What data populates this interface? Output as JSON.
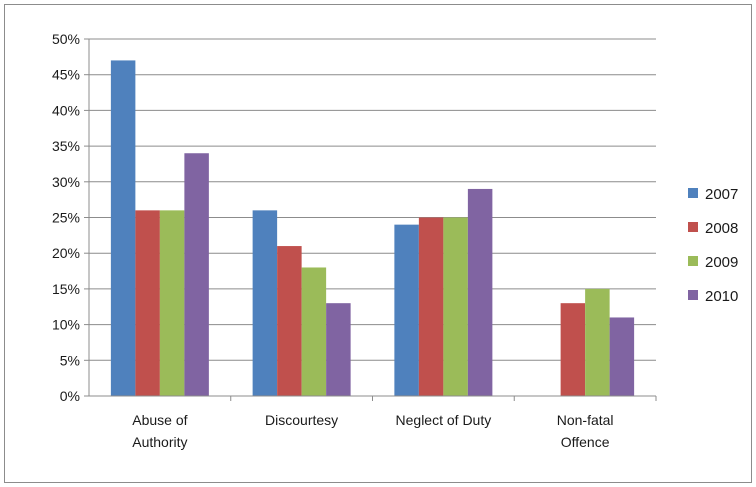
{
  "chart_data": {
    "type": "bar",
    "categories": [
      "Abuse of Authority",
      "Discourtesy",
      "Neglect of Duty",
      "Non-fatal Offence"
    ],
    "category_labels": [
      [
        "Abuse of",
        "Authority"
      ],
      [
        "Discourtesy"
      ],
      [
        "Neglect of Duty"
      ],
      [
        "Non-fatal",
        "Offence"
      ]
    ],
    "series": [
      {
        "name": "2007",
        "color": "#4f81bd",
        "values": [
          47,
          26,
          24,
          null
        ]
      },
      {
        "name": "2008",
        "color": "#c0504d",
        "values": [
          26,
          21,
          25,
          13
        ]
      },
      {
        "name": "2009",
        "color": "#9bbb59",
        "values": [
          26,
          18,
          25,
          15
        ]
      },
      {
        "name": "2010",
        "color": "#8064a2",
        "values": [
          34,
          13,
          29,
          11
        ]
      }
    ],
    "ylim": [
      0,
      50
    ],
    "y_ticks": [
      "0%",
      "5%",
      "10%",
      "15%",
      "20%",
      "25%",
      "30%",
      "35%",
      "40%",
      "45%",
      "50%"
    ],
    "grid": true,
    "legend_position": "right",
    "title": "",
    "xlabel": "",
    "ylabel": ""
  }
}
